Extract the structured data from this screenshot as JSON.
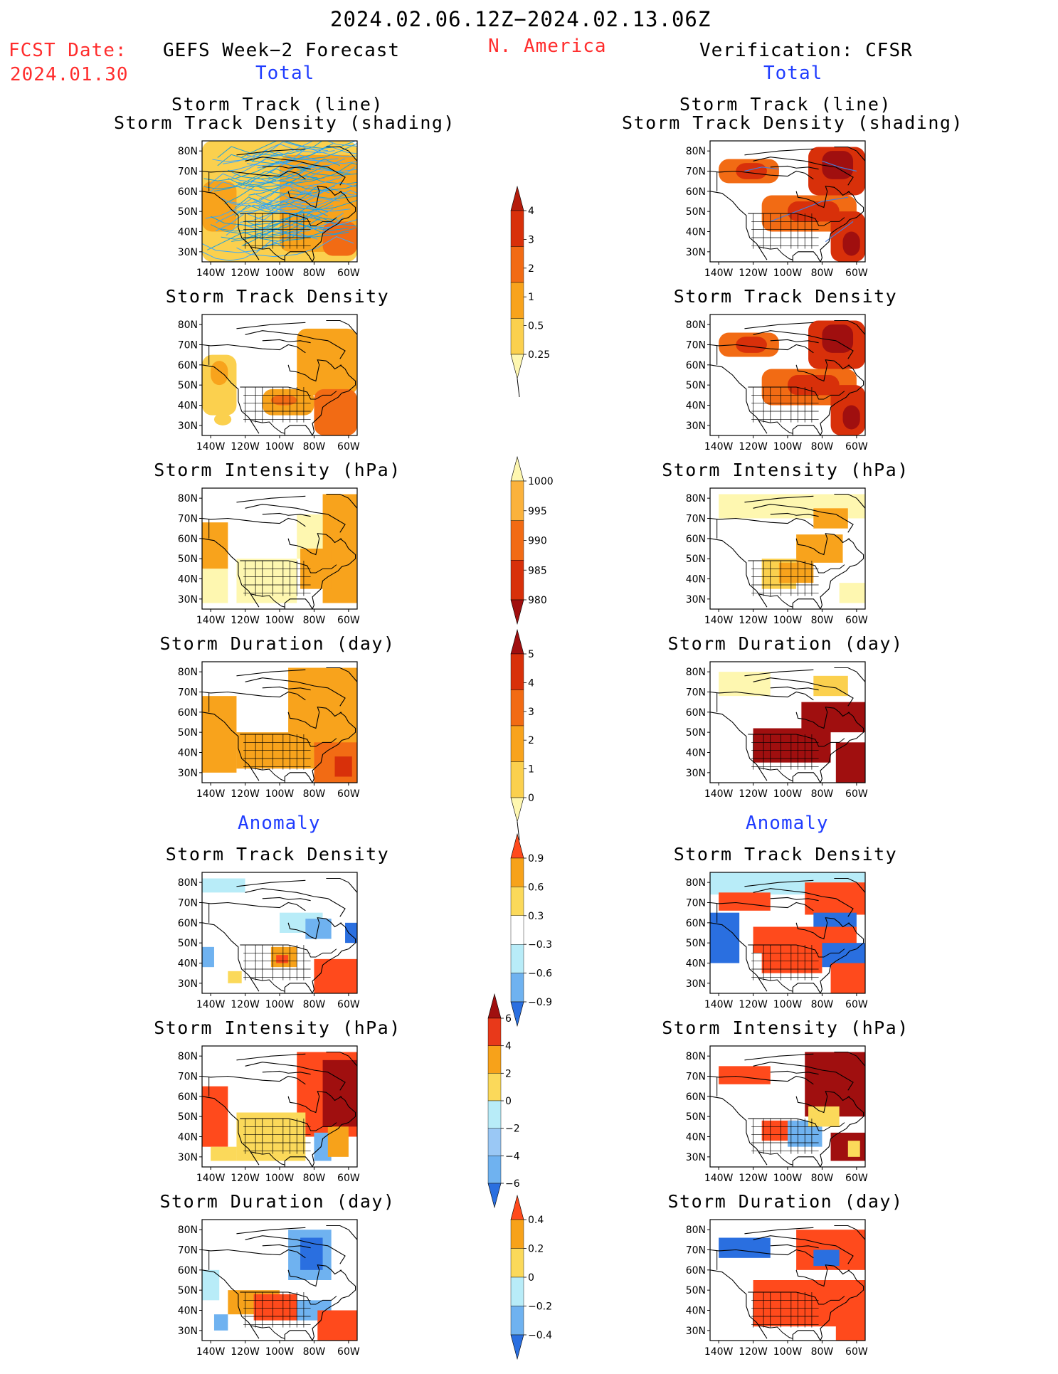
{
  "header": {
    "date_range": "2024.02.06.12Z−2024.02.13.06Z",
    "fcst_label": "FCST Date:",
    "fcst_date": "2024.01.30",
    "left_title": "GEFS Week−2 Forecast",
    "region": "N. America",
    "right_title": "Verification: CFSR",
    "left_section_total": "Total",
    "right_section_total": "Total",
    "left_section_anomaly": "Anomaly",
    "right_section_anomaly": "Anomaly"
  },
  "panel_titles": {
    "track_line": "Storm Track (line)",
    "track_shading": "Storm Track Density (shading)",
    "density": "Storm Track Density",
    "intensity": "Storm Intensity (hPa)",
    "duration": "Storm Duration (day)"
  },
  "axes": {
    "lat_ticks": [
      "80N",
      "70N",
      "60N",
      "50N",
      "40N",
      "30N"
    ],
    "lon_ticks": [
      "140W",
      "120W",
      "100W",
      "80W",
      "60W"
    ]
  },
  "colorbars": {
    "density_total": {
      "labels": [
        "4",
        "3",
        "2",
        "1",
        "0.5",
        "0.25"
      ],
      "colors": [
        "#b51c0c",
        "#d8300a",
        "#f26b14",
        "#f8a31c",
        "#fbd04e",
        "#fef7b0"
      ]
    },
    "intensity_total": {
      "labels": [
        "1000",
        "995",
        "990",
        "985",
        "980"
      ],
      "colors": [
        "#fef7b0",
        "#fbb23c",
        "#f26b14",
        "#d8300a",
        "#a00f0f"
      ]
    },
    "duration_total": {
      "labels": [
        "5",
        "4",
        "3",
        "2",
        "1",
        "0"
      ],
      "colors": [
        "#a00f0f",
        "#d8300a",
        "#f26b14",
        "#f8a31c",
        "#fbd04e",
        "#fef7b0"
      ]
    },
    "density_anom": {
      "labels": [
        "0.9",
        "0.6",
        "0.3",
        "−0.3",
        "−0.6",
        "−0.9"
      ],
      "colors": [
        "#ff4a1c",
        "#f7a21a",
        "#fbd95a",
        "#ffffff",
        "#b8ecf8",
        "#6fb2f0",
        "#2a6fe0"
      ]
    },
    "intensity_anom": {
      "labels": [
        "6",
        "4",
        "2",
        "0",
        "−2",
        "−4",
        "−6"
      ],
      "colors": [
        "#a00f0f",
        "#e8391a",
        "#f7a21a",
        "#fbd95a",
        "#b8ecf8",
        "#9ac8f5",
        "#6fb2f0",
        "#2a6fe0"
      ]
    },
    "duration_anom": {
      "labels": [
        "0.4",
        "0.2",
        "0",
        "−0.2",
        "−0.4"
      ],
      "colors": [
        "#ff4a1c",
        "#f7a21a",
        "#fbd95a",
        "#b8ecf8",
        "#6fb2f0",
        "#2a6fe0"
      ]
    }
  }
}
